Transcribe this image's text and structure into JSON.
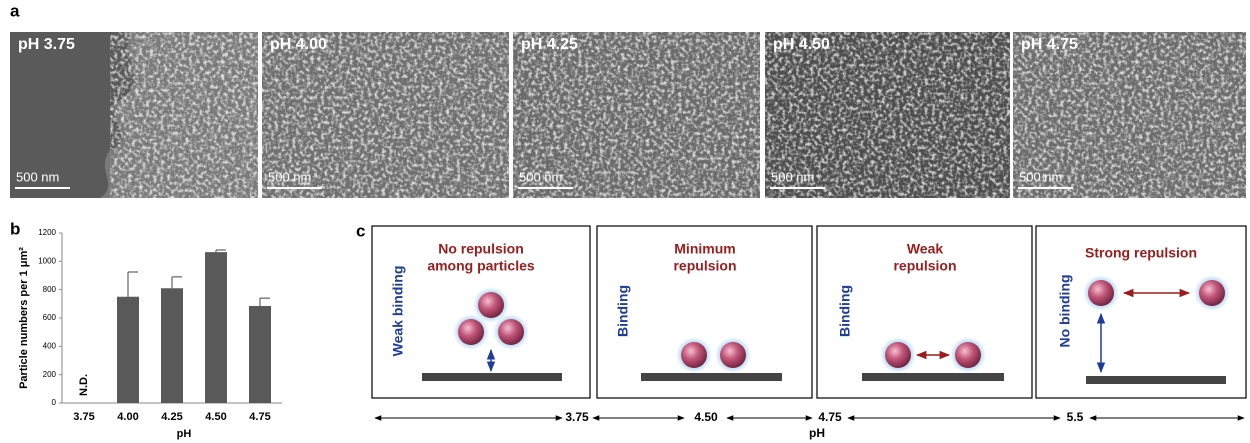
{
  "panel_labels": {
    "a": "a",
    "b": "b",
    "c": "c"
  },
  "panel_a": {
    "images": [
      {
        "label": "pH 3.75",
        "scale_bar": "500 nm"
      },
      {
        "label": "pH 4.00",
        "scale_bar": "500 nm"
      },
      {
        "label": "pH 4.25",
        "scale_bar": "500 nm"
      },
      {
        "label": "pH 4.50",
        "scale_bar": "500 nm"
      },
      {
        "label": "pH 4.75",
        "scale_bar": "500 nm"
      }
    ]
  },
  "chart_data": {
    "type": "bar",
    "ylabel": "Particle numbers per 1 μm²",
    "xlabel": "pH",
    "categories": [
      "3.75",
      "4.00",
      "4.25",
      "4.50",
      "4.75"
    ],
    "values": [
      null,
      750,
      810,
      1065,
      685
    ],
    "errors": [
      null,
      175,
      80,
      15,
      55
    ],
    "value_labels": [
      "N.D.",
      null,
      null,
      null,
      null
    ],
    "color": "#595959",
    "ylim": [
      0,
      1200
    ],
    "yticks": [
      0,
      200,
      400,
      600,
      800,
      1000,
      1200
    ]
  },
  "panel_c": {
    "boxes": [
      {
        "title": [
          "No repulsion",
          "among particles"
        ],
        "binding": "Weak binding"
      },
      {
        "title": [
          "Minimum",
          "repulsion"
        ],
        "binding": "Binding"
      },
      {
        "title": [
          "Weak",
          "repulsion"
        ],
        "binding": "Binding"
      },
      {
        "title": [
          "Strong repulsion"
        ],
        "binding": "No binding"
      }
    ],
    "axis": {
      "ticks": [
        "3.75",
        "4.50",
        "4.75",
        "5.5"
      ],
      "label": "pH"
    }
  }
}
